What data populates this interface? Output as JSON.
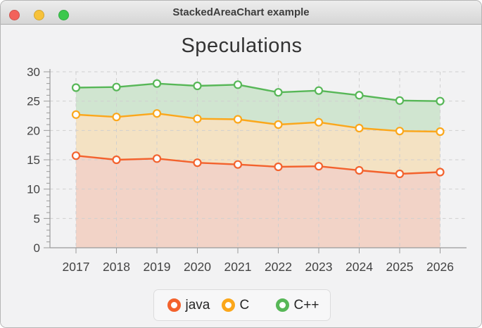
{
  "window": {
    "title": "StackedAreaChart example",
    "controls": [
      {
        "name": "close",
        "color": "#f2625b"
      },
      {
        "name": "minimize",
        "color": "#f7c23a"
      },
      {
        "name": "zoom",
        "color": "#3dc84e"
      }
    ],
    "titlebar_colors": {
      "top": "#ededed",
      "bottom": "#d6d6d6"
    }
  },
  "chart_data": {
    "type": "area",
    "stacked": true,
    "title": "Speculations",
    "x": [
      2017,
      2018,
      2019,
      2020,
      2021,
      2022,
      2023,
      2024,
      2025,
      2026
    ],
    "series": [
      {
        "name": "java",
        "color": "#f3622d",
        "values": [
          15.7,
          15.0,
          15.2,
          14.5,
          14.2,
          13.8,
          13.9,
          13.2,
          12.6,
          12.9
        ]
      },
      {
        "name": "C",
        "color": "#fba71b",
        "values": [
          7.0,
          7.3,
          7.7,
          7.5,
          7.7,
          7.2,
          7.5,
          7.2,
          7.3,
          6.9
        ]
      },
      {
        "name": "C++",
        "color": "#57b757",
        "values": [
          4.6,
          5.1,
          5.1,
          5.6,
          5.9,
          5.5,
          5.4,
          5.6,
          5.2,
          5.2
        ]
      }
    ],
    "stacked_tops": {
      "java": [
        15.7,
        15.0,
        15.2,
        14.5,
        14.2,
        13.8,
        13.9,
        13.2,
        12.6,
        12.9
      ],
      "java_plus_C": [
        22.7,
        22.3,
        22.9,
        22.0,
        21.9,
        21.0,
        21.4,
        20.4,
        19.9,
        19.8
      ],
      "java_plus_C_plus_Cpp": [
        27.3,
        27.4,
        28.0,
        27.6,
        27.8,
        26.5,
        26.8,
        26.0,
        25.1,
        25.0
      ]
    },
    "xlabel": "",
    "ylabel": "",
    "ylim": [
      0,
      30
    ],
    "y_ticks": [
      0,
      5,
      10,
      15,
      20,
      25,
      30
    ],
    "grid": true,
    "grid_style": "dashed",
    "legend_position": "bottom",
    "area_fill_opacity": 0.22,
    "axis_color": "#9a9a9a",
    "gridline_color": "#cfcfcf",
    "tick_label_color": "#434343"
  }
}
